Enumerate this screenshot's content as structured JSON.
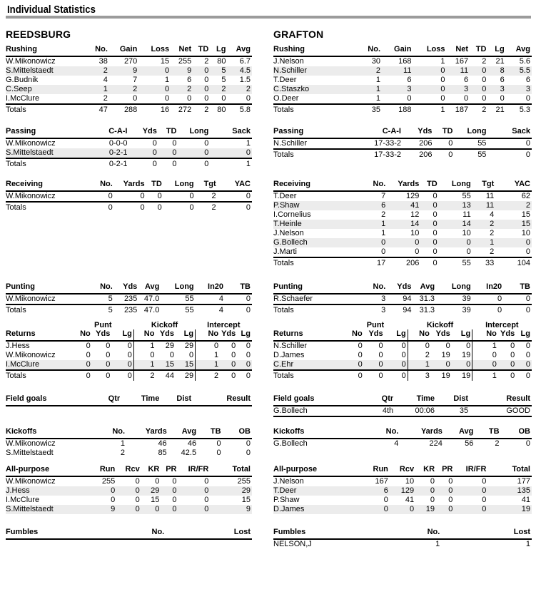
{
  "page_title": "Individual Statistics",
  "teams": [
    {
      "name": "REEDSBURG",
      "rushing": {
        "label": "Rushing",
        "headers": [
          "No.",
          "Gain",
          "Loss",
          "Net",
          "TD",
          "Lg",
          "Avg"
        ],
        "rows": [
          {
            "name": "W.Mikonowicz",
            "values": [
              "38",
              "270",
              "15",
              "255",
              "2",
              "80",
              "6.7"
            ],
            "shaded": false
          },
          {
            "name": "S.Mittelstaedt",
            "values": [
              "2",
              "9",
              "0",
              "9",
              "0",
              "5",
              "4.5"
            ],
            "shaded": true
          },
          {
            "name": "G.Budnik",
            "values": [
              "4",
              "7",
              "1",
              "6",
              "0",
              "5",
              "1.5"
            ],
            "shaded": false
          },
          {
            "name": "C.Seep",
            "values": [
              "1",
              "2",
              "0",
              "2",
              "0",
              "2",
              "2"
            ],
            "shaded": true
          },
          {
            "name": "I.McClure",
            "values": [
              "2",
              "0",
              "0",
              "0",
              "0",
              "0",
              "0"
            ],
            "shaded": false
          }
        ],
        "totals": {
          "name": "Totals",
          "values": [
            "47",
            "288",
            "16",
            "272",
            "2",
            "80",
            "5.8"
          ]
        }
      },
      "passing": {
        "label": "Passing",
        "headers": [
          "C-A-I",
          "Yds",
          "TD",
          "Long",
          "Sack"
        ],
        "rows": [
          {
            "name": "W.Mikonowicz",
            "values": [
              "0-0-0",
              "0",
              "0",
              "0",
              "1"
            ],
            "shaded": false
          },
          {
            "name": "S.Mittelstaedt",
            "values": [
              "0-2-1",
              "0",
              "0",
              "0",
              "0"
            ],
            "shaded": true
          }
        ],
        "totals": {
          "name": "Totals",
          "values": [
            "0-2-1",
            "0",
            "0",
            "0",
            "1"
          ]
        }
      },
      "receiving": {
        "label": "Receiving",
        "headers": [
          "No.",
          "Yards",
          "TD",
          "Long",
          "Tgt",
          "YAC"
        ],
        "rows": [
          {
            "name": "W.Mikonowicz",
            "values": [
              "0",
              "0",
              "0",
              "0",
              "2",
              "0"
            ],
            "shaded": false
          }
        ],
        "totals": {
          "name": "Totals",
          "values": [
            "0",
            "0",
            "0",
            "0",
            "2",
            "0"
          ]
        }
      },
      "punting": {
        "label": "Punting",
        "headers": [
          "No.",
          "Yds",
          "Avg",
          "Long",
          "In20",
          "TB"
        ],
        "rows": [
          {
            "name": "W.Mikonowicz",
            "values": [
              "5",
              "235",
              "47.0",
              "55",
              "4",
              "0"
            ],
            "shaded": false
          }
        ],
        "totals": {
          "name": "Totals",
          "values": [
            "5",
            "235",
            "47.0",
            "55",
            "4",
            "0"
          ]
        }
      },
      "returns": {
        "label": "Returns",
        "groups": [
          "Punt",
          "Kickoff",
          "Intercept"
        ],
        "headers": [
          "No",
          "Yds",
          "Lg",
          "No",
          "Yds",
          "Lg",
          "No",
          "Yds",
          "Lg"
        ],
        "rows": [
          {
            "name": "J.Hess",
            "values": [
              "0",
              "0",
              "0",
              "1",
              "29",
              "29",
              "0",
              "0",
              "0"
            ],
            "shaded": false
          },
          {
            "name": "W.Mikonowicz",
            "values": [
              "0",
              "0",
              "0",
              "0",
              "0",
              "0",
              "1",
              "0",
              "0"
            ],
            "shaded": false
          },
          {
            "name": "I.McClure",
            "values": [
              "0",
              "0",
              "0",
              "1",
              "15",
              "15",
              "1",
              "0",
              "0"
            ],
            "shaded": true
          }
        ],
        "totals": {
          "name": "Totals",
          "values": [
            "0",
            "0",
            "0",
            "2",
            "44",
            "29",
            "2",
            "0",
            "0"
          ]
        }
      },
      "fieldgoals": {
        "label": "Field goals",
        "headers": [
          "Qtr",
          "Time",
          "Dist",
          "Result"
        ],
        "rows": []
      },
      "kickoffs": {
        "label": "Kickoffs",
        "headers": [
          "No.",
          "Yards",
          "Avg",
          "TB",
          "OB"
        ],
        "rows": [
          {
            "name": "W.Mikonowicz",
            "values": [
              "1",
              "46",
              "46",
              "0",
              "0"
            ],
            "shaded": false
          },
          {
            "name": "S.Mittelstaedt",
            "values": [
              "2",
              "85",
              "42.5",
              "0",
              "0"
            ],
            "shaded": false
          }
        ]
      },
      "allpurpose": {
        "label": "All-purpose",
        "headers": [
          "Run",
          "Rcv",
          "KR",
          "PR",
          "IR/FR",
          "Total"
        ],
        "rows": [
          {
            "name": "W.Mikonowicz",
            "values": [
              "255",
              "0",
              "0",
              "0",
              "0",
              "255"
            ],
            "shaded": false
          },
          {
            "name": "J.Hess",
            "values": [
              "0",
              "0",
              "29",
              "0",
              "0",
              "29"
            ],
            "shaded": true
          },
          {
            "name": "I.McClure",
            "values": [
              "0",
              "0",
              "15",
              "0",
              "0",
              "15"
            ],
            "shaded": false
          },
          {
            "name": "S.Mittelstaedt",
            "values": [
              "9",
              "0",
              "0",
              "0",
              "0",
              "9"
            ],
            "shaded": true
          }
        ]
      },
      "fumbles": {
        "label": "Fumbles",
        "headers": [
          "No.",
          "Lost"
        ],
        "rows": []
      }
    },
    {
      "name": "GRAFTON",
      "rushing": {
        "label": "Rushing",
        "headers": [
          "No.",
          "Gain",
          "Loss",
          "Net",
          "TD",
          "Lg",
          "Avg"
        ],
        "rows": [
          {
            "name": "J.Nelson",
            "values": [
              "30",
              "168",
              "1",
              "167",
              "2",
              "21",
              "5.6"
            ],
            "shaded": false
          },
          {
            "name": "N.Schiller",
            "values": [
              "2",
              "11",
              "0",
              "11",
              "0",
              "8",
              "5.5"
            ],
            "shaded": true
          },
          {
            "name": "T.Deer",
            "values": [
              "1",
              "6",
              "0",
              "6",
              "0",
              "6",
              "6"
            ],
            "shaded": false
          },
          {
            "name": "C.Staszko",
            "values": [
              "1",
              "3",
              "0",
              "3",
              "0",
              "3",
              "3"
            ],
            "shaded": true
          },
          {
            "name": "O.Deer",
            "values": [
              "1",
              "0",
              "0",
              "0",
              "0",
              "0",
              "0"
            ],
            "shaded": false
          }
        ],
        "totals": {
          "name": "Totals",
          "values": [
            "35",
            "188",
            "1",
            "187",
            "2",
            "21",
            "5.3"
          ]
        }
      },
      "passing": {
        "label": "Passing",
        "headers": [
          "C-A-I",
          "Yds",
          "TD",
          "Long",
          "Sack"
        ],
        "rows": [
          {
            "name": "N.Schiller",
            "values": [
              "17-33-2",
              "206",
              "0",
              "55",
              "0"
            ],
            "shaded": false
          }
        ],
        "totals": {
          "name": "Totals",
          "values": [
            "17-33-2",
            "206",
            "0",
            "55",
            "0"
          ]
        }
      },
      "receiving": {
        "label": "Receiving",
        "headers": [
          "No.",
          "Yards",
          "TD",
          "Long",
          "Tgt",
          "YAC"
        ],
        "rows": [
          {
            "name": "T.Deer",
            "values": [
              "7",
              "129",
              "0",
              "55",
              "11",
              "62"
            ],
            "shaded": false
          },
          {
            "name": "P.Shaw",
            "values": [
              "6",
              "41",
              "0",
              "13",
              "11",
              "2"
            ],
            "shaded": true
          },
          {
            "name": "I.Cornelius",
            "values": [
              "2",
              "12",
              "0",
              "11",
              "4",
              "15"
            ],
            "shaded": false
          },
          {
            "name": "T.Heinle",
            "values": [
              "1",
              "14",
              "0",
              "14",
              "2",
              "15"
            ],
            "shaded": true
          },
          {
            "name": "J.Nelson",
            "values": [
              "1",
              "10",
              "0",
              "10",
              "2",
              "10"
            ],
            "shaded": false
          },
          {
            "name": "G.Bollech",
            "values": [
              "0",
              "0",
              "0",
              "0",
              "1",
              "0"
            ],
            "shaded": true
          },
          {
            "name": "J.Marti",
            "values": [
              "0",
              "0",
              "0",
              "0",
              "2",
              "0"
            ],
            "shaded": false
          }
        ],
        "totals": {
          "name": "Totals",
          "values": [
            "17",
            "206",
            "0",
            "55",
            "33",
            "104"
          ]
        }
      },
      "punting": {
        "label": "Punting",
        "headers": [
          "No.",
          "Yds",
          "Avg",
          "Long",
          "In20",
          "TB"
        ],
        "rows": [
          {
            "name": "R.Schaefer",
            "values": [
              "3",
              "94",
              "31.3",
              "39",
              "0",
              "0"
            ],
            "shaded": false
          }
        ],
        "totals": {
          "name": "Totals",
          "values": [
            "3",
            "94",
            "31.3",
            "39",
            "0",
            "0"
          ]
        }
      },
      "returns": {
        "label": "Returns",
        "groups": [
          "Punt",
          "Kickoff",
          "Intercept"
        ],
        "headers": [
          "No",
          "Yds",
          "Lg",
          "No",
          "Yds",
          "Lg",
          "No",
          "Yds",
          "Lg"
        ],
        "rows": [
          {
            "name": "N.Schiller",
            "values": [
              "0",
              "0",
              "0",
              "0",
              "0",
              "0",
              "1",
              "0",
              "0"
            ],
            "shaded": false
          },
          {
            "name": "D.James",
            "values": [
              "0",
              "0",
              "0",
              "2",
              "19",
              "19",
              "0",
              "0",
              "0"
            ],
            "shaded": false
          },
          {
            "name": "C.Ehr",
            "values": [
              "0",
              "0",
              "0",
              "1",
              "0",
              "0",
              "0",
              "0",
              "0"
            ],
            "shaded": true
          }
        ],
        "totals": {
          "name": "Totals",
          "values": [
            "0",
            "0",
            "0",
            "3",
            "19",
            "19",
            "1",
            "0",
            "0"
          ]
        }
      },
      "fieldgoals": {
        "label": "Field goals",
        "headers": [
          "Qtr",
          "Time",
          "Dist",
          "Result"
        ],
        "rows": [
          {
            "name": "G.Bollech",
            "values": [
              "4th",
              "00:06",
              "35",
              "GOOD"
            ],
            "shaded": false
          }
        ]
      },
      "kickoffs": {
        "label": "Kickoffs",
        "headers": [
          "No.",
          "Yards",
          "Avg",
          "TB",
          "OB"
        ],
        "rows": [
          {
            "name": "G.Bollech",
            "values": [
              "4",
              "224",
              "56",
              "2",
              "0"
            ],
            "shaded": false
          }
        ]
      },
      "allpurpose": {
        "label": "All-purpose",
        "headers": [
          "Run",
          "Rcv",
          "KR",
          "PR",
          "IR/FR",
          "Total"
        ],
        "rows": [
          {
            "name": "J.Nelson",
            "values": [
              "167",
              "10",
              "0",
              "0",
              "0",
              "177"
            ],
            "shaded": false
          },
          {
            "name": "T.Deer",
            "values": [
              "6",
              "129",
              "0",
              "0",
              "0",
              "135"
            ],
            "shaded": true
          },
          {
            "name": "P.Shaw",
            "values": [
              "0",
              "41",
              "0",
              "0",
              "0",
              "41"
            ],
            "shaded": false
          },
          {
            "name": "D.James",
            "values": [
              "0",
              "0",
              "19",
              "0",
              "0",
              "19"
            ],
            "shaded": true
          }
        ]
      },
      "fumbles": {
        "label": "Fumbles",
        "headers": [
          "No.",
          "Lost"
        ],
        "rows": [
          {
            "name": "NELSON,J",
            "values": [
              "1",
              "1"
            ],
            "shaded": false
          }
        ]
      }
    }
  ]
}
